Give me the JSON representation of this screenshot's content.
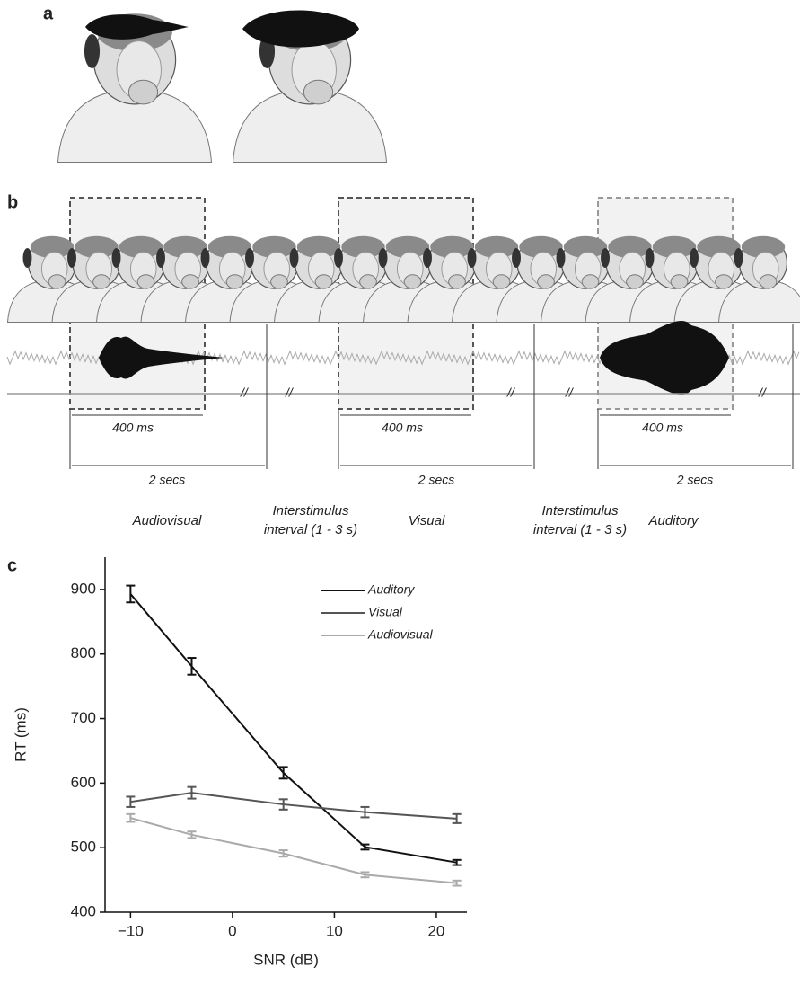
{
  "panels": {
    "a": {
      "label": "a"
    },
    "b": {
      "label": "b",
      "trials": [
        {
          "stimulus_duration": "400 ms",
          "trial_duration": "2 secs",
          "condition": "Audiovisual"
        },
        {
          "stimulus_duration": "400 ms",
          "trial_duration": "2 secs",
          "condition": "Visual"
        },
        {
          "stimulus_duration": "400 ms",
          "trial_duration": "2 secs",
          "condition": "Auditory"
        }
      ],
      "intervals": [
        [
          "Interstimulus",
          "interval (1 - 3 s)"
        ],
        [
          "Interstimulus",
          "interval (1 - 3 s)"
        ]
      ]
    },
    "c": {
      "label": "c"
    }
  },
  "chart_data": {
    "type": "line",
    "x_label": "SNR (dB)",
    "y_label": "RT (ms)",
    "x": [
      -10,
      -4,
      5,
      13,
      22
    ],
    "series": [
      {
        "name": "Auditory",
        "color": "#111111",
        "values": [
          893,
          781,
          616,
          501,
          477
        ],
        "errors": [
          13,
          13,
          9,
          4,
          4
        ]
      },
      {
        "name": "Visual",
        "color": "#555555",
        "values": [
          571,
          585,
          567,
          555,
          545
        ],
        "errors": [
          8,
          9,
          8,
          8,
          7
        ]
      },
      {
        "name": "Audiovisual",
        "color": "#aaaaaa",
        "values": [
          546,
          520,
          491,
          458,
          445
        ],
        "errors": [
          6,
          5,
          5,
          4,
          4
        ]
      }
    ],
    "xlim": [
      -12.5,
      23
    ],
    "ylim": [
      400,
      950
    ],
    "xticks": [
      {
        "value": -10,
        "label": "−10"
      },
      0,
      10,
      20
    ],
    "yticks": [
      400,
      500,
      600,
      700,
      800,
      900
    ],
    "legend": "upper right",
    "grid": false
  }
}
